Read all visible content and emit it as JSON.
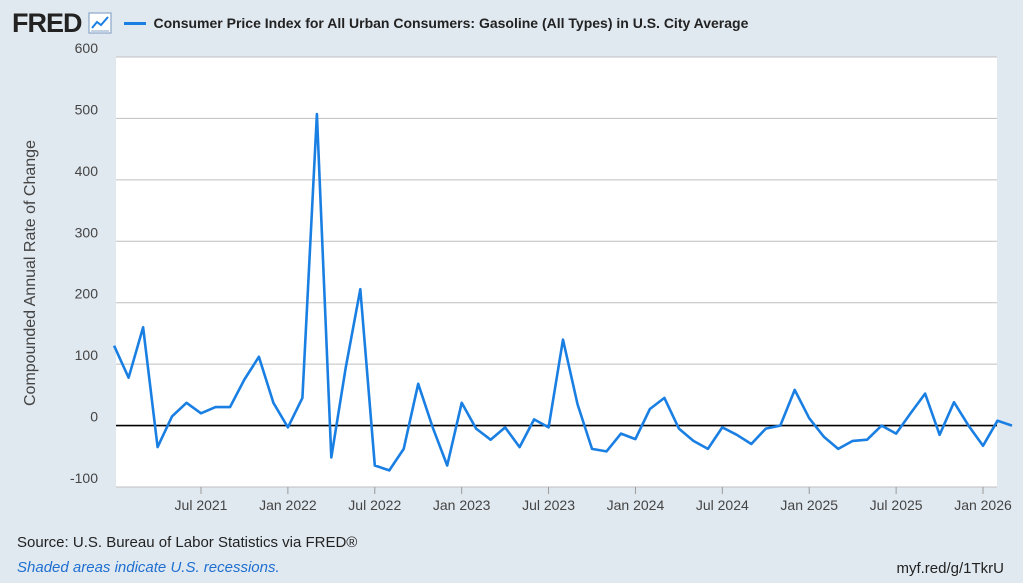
{
  "header": {
    "logo": "FRED",
    "series_title": "Consumer Price Index for All Urban Consumers: Gasoline (All Types) in U.S. City Average"
  },
  "footer": {
    "source": "Source: U.S. Bureau of Labor Statistics via FRED®",
    "note": "Shaded areas indicate U.S. recessions.",
    "link": "myf.red/g/1TkrU"
  },
  "colors": {
    "series": "#1a7fe3",
    "plot_bg": "#ffffff",
    "page_bg": "#e1e9f0",
    "grid": "#bfbfbf",
    "zero_line": "#000000"
  },
  "icons": {
    "chart": "line-chart-icon"
  },
  "chart_data": {
    "type": "line",
    "title": "",
    "xlabel": "",
    "ylabel": "Compounded Annual Rate of Change",
    "ylim": [
      -100,
      600
    ],
    "yticks": [
      -100,
      0,
      100,
      200,
      300,
      400,
      500,
      600
    ],
    "xticks": [
      "Jul 2021",
      "Jan 2022",
      "Jul 2022",
      "Jan 2023",
      "Jul 2023",
      "Jan 2024",
      "Jul 2024",
      "Jan 2025",
      "Jul 2025",
      "Jan 2026"
    ],
    "grid": true,
    "legend": "top-left",
    "series": [
      {
        "name": "Consumer Price Index for All Urban Consumers: Gasoline (All Types) in U.S. City Average",
        "x": [
          "2021-01",
          "2021-02",
          "2021-03",
          "2021-04",
          "2021-05",
          "2021-06",
          "2021-07",
          "2021-08",
          "2021-09",
          "2021-10",
          "2021-11",
          "2021-12",
          "2022-01",
          "2022-02",
          "2022-03",
          "2022-04",
          "2022-05",
          "2022-06",
          "2022-07",
          "2022-08",
          "2022-09",
          "2022-10",
          "2022-11",
          "2022-12",
          "2023-01",
          "2023-02",
          "2023-03",
          "2023-04",
          "2023-05",
          "2023-06",
          "2023-07",
          "2023-08",
          "2023-09",
          "2023-10",
          "2023-11",
          "2023-12",
          "2024-01",
          "2024-02",
          "2024-03",
          "2024-04",
          "2024-05",
          "2024-06",
          "2024-07",
          "2024-08",
          "2024-09",
          "2024-10",
          "2024-11",
          "2024-12",
          "2025-01",
          "2025-02",
          "2025-03",
          "2025-04",
          "2025-05",
          "2025-06",
          "2025-07",
          "2025-08",
          "2025-09",
          "2025-10",
          "2025-11",
          "2025-12",
          "2026-01",
          "2026-02",
          "2026-03"
        ],
        "values": [
          130,
          78,
          160,
          -35,
          15,
          37,
          20,
          30,
          30,
          75,
          112,
          37,
          -3,
          45,
          507,
          -52,
          95,
          222,
          -65,
          -73,
          -38,
          68,
          -3,
          -65,
          37,
          -5,
          -23,
          -3,
          -35,
          10,
          -3,
          140,
          35,
          -38,
          -42,
          -13,
          -22,
          27,
          45,
          -5,
          -25,
          -38,
          -3,
          -15,
          -30,
          -5,
          0,
          58,
          12,
          -18,
          -38,
          -25,
          -23,
          0,
          -13,
          20,
          52,
          -15,
          38,
          0,
          -33,
          8,
          0
        ]
      }
    ]
  }
}
